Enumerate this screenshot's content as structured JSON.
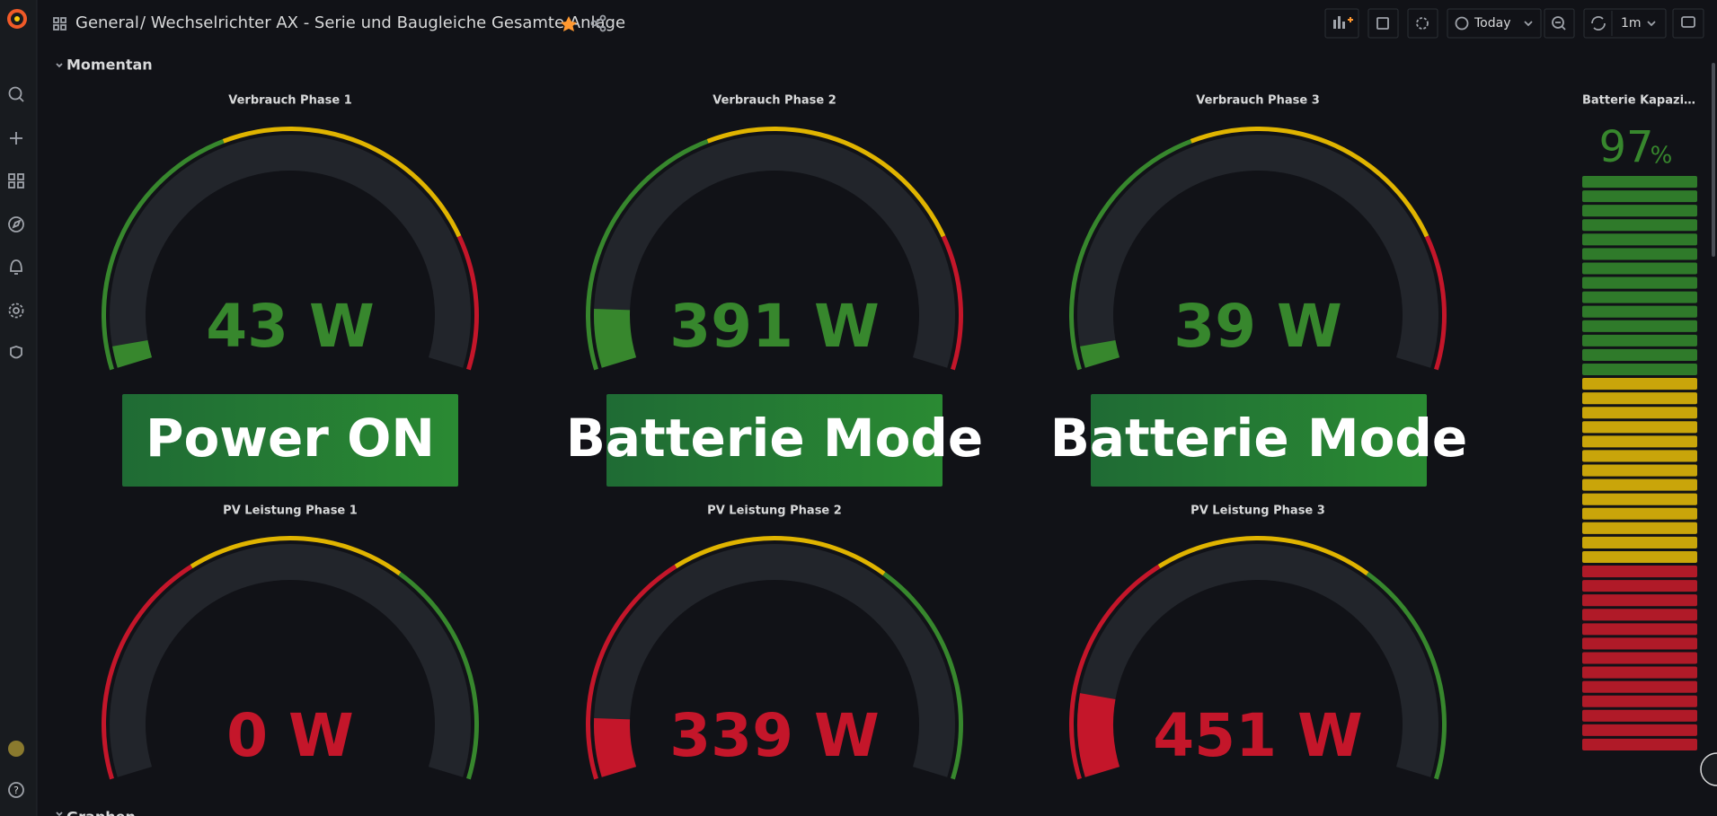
{
  "header": {
    "folder": "General",
    "title": "/ Wechselrichter AX - Serie und Baugleiche Gesamte Anlage",
    "time_range": "Today",
    "refresh": "1m"
  },
  "rows": [
    {
      "title": "Momentan"
    },
    {
      "title": "Graphen"
    }
  ],
  "gauges": [
    {
      "title": "Verbrauch Phase 1",
      "value": "43 W"
    },
    {
      "title": "Verbrauch Phase 2",
      "value": "391 W"
    },
    {
      "title": "Verbrauch Phase 3",
      "value": "39 W"
    },
    {
      "title": "PV Leistung Phase 1",
      "value": "0 W"
    },
    {
      "title": "PV Leistung Phase 2",
      "value": "339 W"
    },
    {
      "title": "PV Leistung Phase 3",
      "value": "451 W"
    }
  ],
  "status": [
    {
      "text": "Power ON"
    },
    {
      "text": "Batterie Mode"
    },
    {
      "text": "Batterie Mode"
    }
  ],
  "battery": {
    "title": "Batterie Kapazi…",
    "value": "97",
    "unit": "%"
  }
}
